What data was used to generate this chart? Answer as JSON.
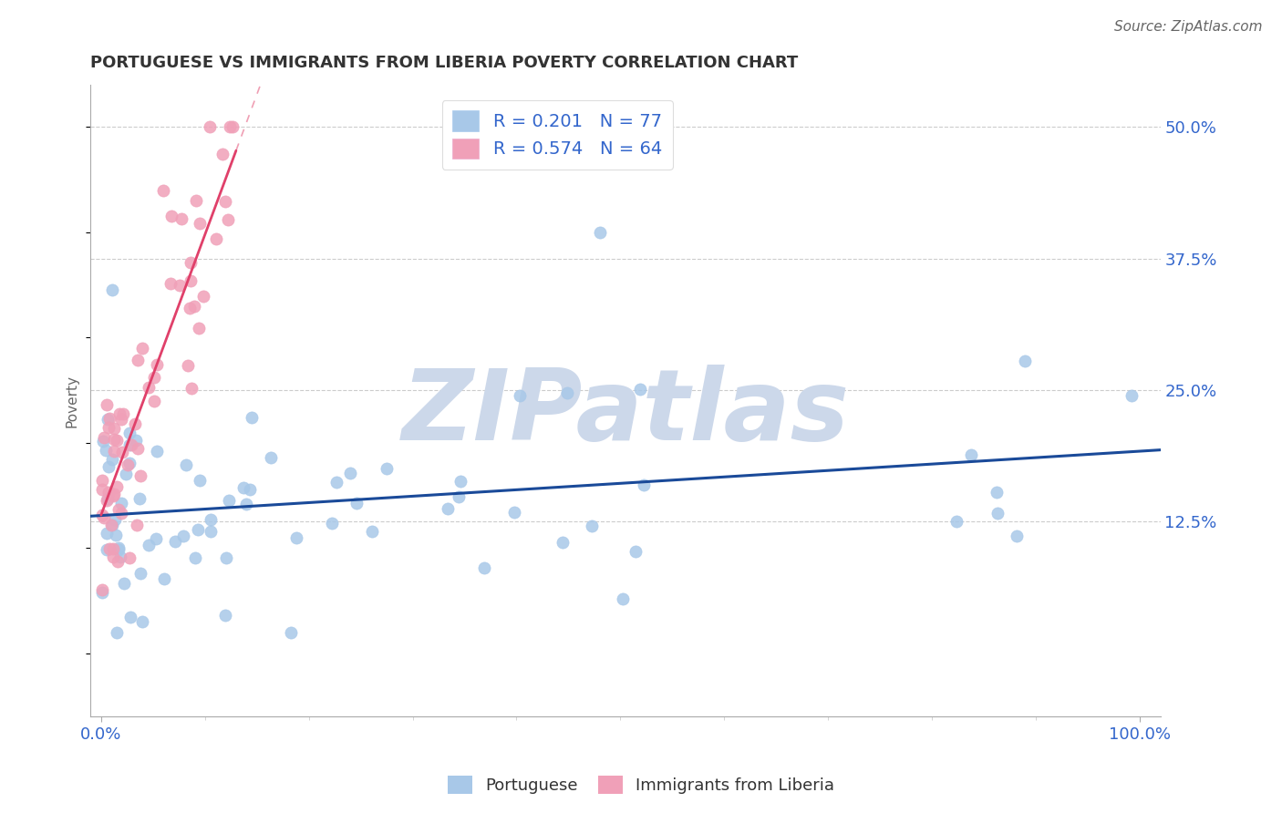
{
  "title": "PORTUGUESE VS IMMIGRANTS FROM LIBERIA POVERTY CORRELATION CHART",
  "source": "Source: ZipAtlas.com",
  "ylabel": "Poverty",
  "ytick_labels": [
    "12.5%",
    "25.0%",
    "37.5%",
    "50.0%"
  ],
  "ytick_values": [
    0.125,
    0.25,
    0.375,
    0.5
  ],
  "xlim": [
    -0.01,
    1.02
  ],
  "ylim": [
    -0.06,
    0.54
  ],
  "portuguese_color": "#a8c8e8",
  "liberia_color": "#f0a0b8",
  "portuguese_trend_color": "#1a4a99",
  "liberia_trend_color": "#e0406a",
  "watermark_text": "ZIPatlas",
  "watermark_color": "#ccd8ea",
  "port_R": 0.201,
  "port_N": 77,
  "lib_R": 0.574,
  "lib_N": 64,
  "title_fontsize": 13,
  "axis_label_color": "#3366cc",
  "background_color": "#ffffff",
  "grid_color": "#cccccc",
  "legend_R1": "R = 0.201",
  "legend_N1": "N = 77",
  "legend_R2": "R = 0.574",
  "legend_N2": "N = 64"
}
